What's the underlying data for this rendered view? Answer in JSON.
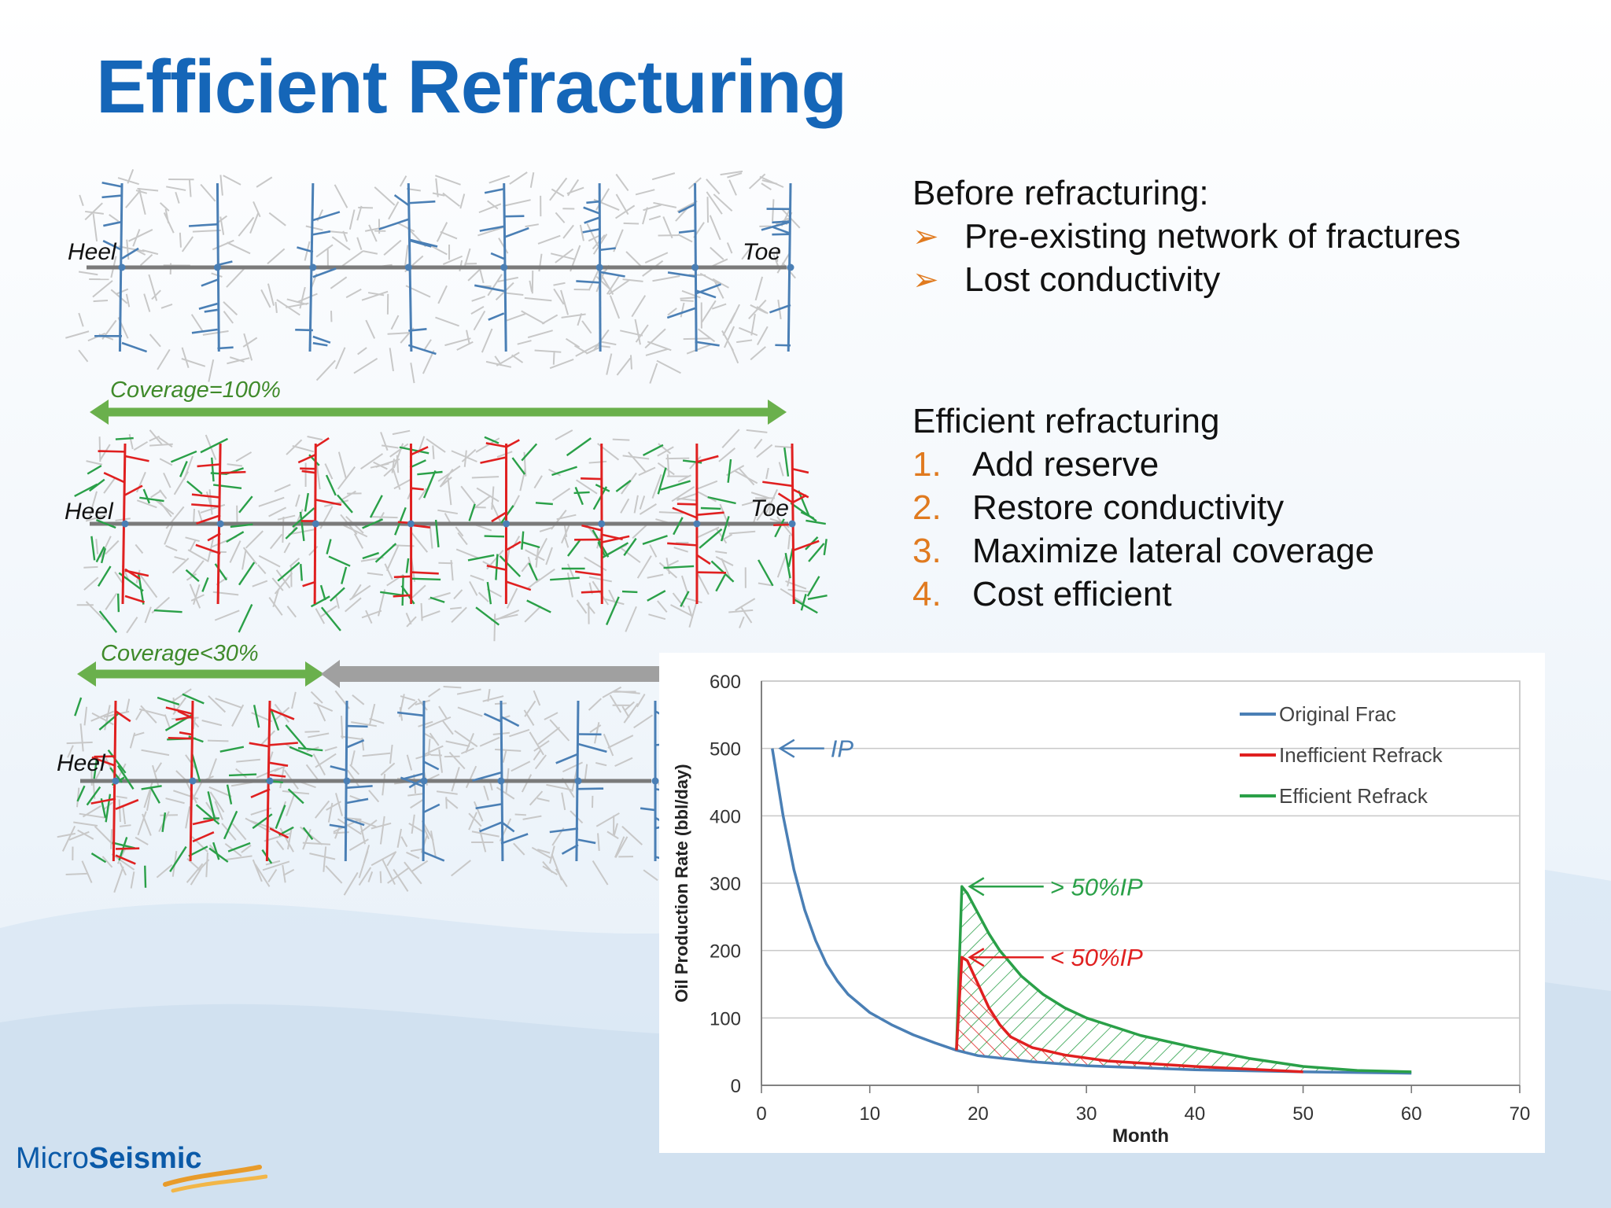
{
  "title": "Efficient Refracturing",
  "before": {
    "heading": "Before refracturing:",
    "items": [
      "Pre-existing network of fractures",
      "Lost conductivity"
    ]
  },
  "efficient": {
    "heading": "Efficient refracturing",
    "items": [
      {
        "num": "1.",
        "text": "Add reserve"
      },
      {
        "num": "2.",
        "text": "Restore conductivity"
      },
      {
        "num": "3.",
        "text": "Maximize lateral coverage"
      },
      {
        "num": "4.",
        "text": "Cost efficient"
      }
    ]
  },
  "diagrams": {
    "heel": "Heel",
    "toe": "Toe",
    "coverage_full": "Coverage=100%",
    "coverage_partial": "Coverage<30%"
  },
  "colors": {
    "title": "#1566b8",
    "original": "#4a7fb5",
    "inefficient": "#e02020",
    "efficient": "#2aa048",
    "accent": "#e07a1f",
    "arrow_green": "#6ab04c",
    "arrow_gray": "#a0a0a0"
  },
  "chart_data": {
    "type": "line",
    "xlabel": "Month",
    "ylabel": "Oil Production Rate (bbl/day)",
    "xlim": [
      0,
      70
    ],
    "ylim": [
      0,
      600
    ],
    "xticks": [
      0,
      10,
      20,
      30,
      40,
      50,
      60,
      70
    ],
    "yticks": [
      0,
      100,
      200,
      300,
      400,
      500,
      600
    ],
    "grid": "horizontal",
    "legend": "top-right",
    "series": [
      {
        "name": "Original Frac",
        "color": "#4a7fb5",
        "x": [
          1,
          2,
          3,
          4,
          5,
          6,
          7,
          8,
          10,
          12,
          14,
          16,
          18,
          20,
          25,
          30,
          40,
          50,
          60
        ],
        "y": [
          500,
          400,
          320,
          260,
          215,
          180,
          155,
          135,
          108,
          90,
          75,
          63,
          52,
          44,
          35,
          29,
          23,
          20,
          18
        ]
      },
      {
        "name": "Inefficient Refrack",
        "color": "#e02020",
        "x": [
          18,
          18.5,
          19,
          20,
          21,
          22,
          23,
          25,
          28,
          32,
          40,
          50
        ],
        "y": [
          52,
          190,
          185,
          150,
          115,
          90,
          72,
          56,
          45,
          36,
          28,
          20
        ]
      },
      {
        "name": "Efficient Refrack",
        "color": "#2aa048",
        "x": [
          18,
          18.5,
          19,
          20,
          21,
          22,
          24,
          26,
          28,
          30,
          35,
          40,
          45,
          50,
          55,
          60
        ],
        "y": [
          52,
          295,
          285,
          255,
          225,
          200,
          162,
          135,
          115,
          100,
          74,
          56,
          40,
          28,
          22,
          20
        ]
      }
    ],
    "annotations": [
      {
        "text": "IP",
        "color": "#4a7fb5",
        "x": 1,
        "y": 500
      },
      {
        "text": "> 50%IP",
        "color": "#2aa048",
        "x": 18.5,
        "y": 295
      },
      {
        "text": "< 50%IP",
        "color": "#e02020",
        "x": 18.5,
        "y": 190
      }
    ]
  }
}
